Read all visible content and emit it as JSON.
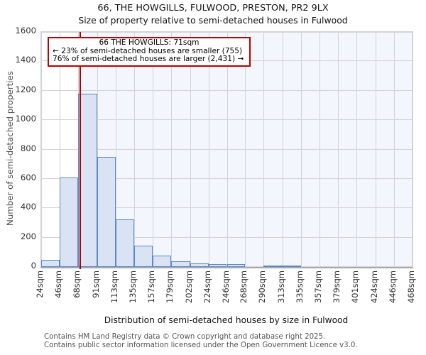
{
  "page": {
    "title_line1": "66, THE HOWGILLS, FULWOOD, PRESTON, PR2 9LX",
    "title_line2": "Size of property relative to semi-detached houses in Fulwood"
  },
  "annotation": {
    "line1": "66 THE HOWGILLS: 71sqm",
    "line2": "← 23% of semi-detached houses are smaller (755)",
    "line3": "76% of semi-detached houses are larger (2,431) →"
  },
  "footer": {
    "line1": "Contains HM Land Registry data © Crown copyright and database right 2025.",
    "line2": "Contains public sector information licensed under the Open Government Licence v3.0."
  },
  "chart_data": {
    "type": "bar",
    "title": "66, THE HOWGILLS, FULWOOD, PRESTON, PR2 9LX",
    "subtitle": "Size of property relative to semi-detached houses in Fulwood",
    "xlabel": "Distribution of semi-detached houses by size in Fulwood",
    "ylabel": "Number of semi-detached properties",
    "xlim": [
      24,
      468
    ],
    "ylim": [
      0,
      1600
    ],
    "y_ticks": [
      0,
      200,
      400,
      600,
      800,
      1000,
      1200,
      1400,
      1600
    ],
    "x_ticks": [
      24,
      46,
      68,
      91,
      113,
      135,
      157,
      179,
      202,
      224,
      246,
      268,
      290,
      313,
      335,
      357,
      379,
      401,
      424,
      446,
      468
    ],
    "x_tick_suffix": "sqm",
    "grid": true,
    "legend": false,
    "bins": [
      {
        "from": 24,
        "to": 46,
        "count": 50
      },
      {
        "from": 46,
        "to": 68,
        "count": 610
      },
      {
        "from": 68,
        "to": 91,
        "count": 1180
      },
      {
        "from": 91,
        "to": 113,
        "count": 750
      },
      {
        "from": 113,
        "to": 135,
        "count": 325
      },
      {
        "from": 135,
        "to": 157,
        "count": 145
      },
      {
        "from": 157,
        "to": 179,
        "count": 75
      },
      {
        "from": 179,
        "to": 202,
        "count": 40
      },
      {
        "from": 202,
        "to": 224,
        "count": 25
      },
      {
        "from": 224,
        "to": 246,
        "count": 20
      },
      {
        "from": 246,
        "to": 268,
        "count": 20
      },
      {
        "from": 268,
        "to": 290,
        "count": 0
      },
      {
        "from": 290,
        "to": 313,
        "count": 12
      },
      {
        "from": 313,
        "to": 335,
        "count": 12
      },
      {
        "from": 335,
        "to": 357,
        "count": 0
      },
      {
        "from": 357,
        "to": 379,
        "count": 0
      },
      {
        "from": 379,
        "to": 401,
        "count": 0
      },
      {
        "from": 401,
        "to": 424,
        "count": 0
      },
      {
        "from": 424,
        "to": 446,
        "count": 0
      },
      {
        "from": 446,
        "to": 468,
        "count": 0
      }
    ],
    "marker": {
      "value": 71,
      "label": "66 THE HOWGILLS: 71sqm",
      "smaller_pct": 23,
      "smaller_count": 755,
      "larger_pct": 76,
      "larger_count": 2431
    },
    "colors": {
      "bar_fill": "#d9e3f4",
      "bar_border": "#5a8ac6",
      "marker_line": "#b40000",
      "annotation_border": "#bb0000",
      "shade_right": "#f3f6fc",
      "gridline": "#d2d3d8"
    }
  }
}
